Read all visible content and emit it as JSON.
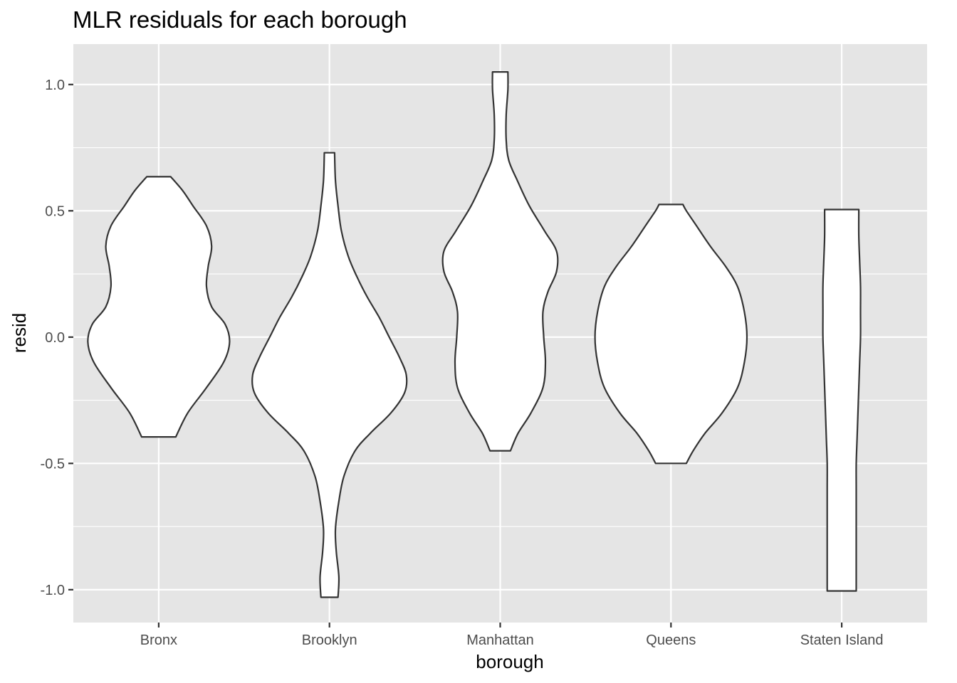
{
  "chart_data": {
    "type": "violin",
    "title": "MLR residuals for each borough",
    "xlabel": "borough",
    "ylabel": "resid",
    "ylim": [
      -1.13,
      1.16
    ],
    "yticks": [
      -1.0,
      -0.5,
      0.0,
      0.5,
      1.0
    ],
    "ytick_labels": [
      "-1.0",
      "-0.5",
      "0.0",
      "0.5",
      "1.0"
    ],
    "categories": [
      "Bronx",
      "Brooklyn",
      "Manhattan",
      "Queens",
      "Staten Island"
    ],
    "grid": true,
    "colors": {
      "panel": "#e5e5e5",
      "grid": "#ffffff",
      "outline": "#333333",
      "fill": "#ffffff"
    },
    "violins": [
      {
        "category": "Bronx",
        "min": -0.395,
        "max": 0.635,
        "profile": [
          [
            -0.395,
            0.2
          ],
          [
            -0.3,
            0.34
          ],
          [
            -0.2,
            0.56
          ],
          [
            -0.1,
            0.76
          ],
          [
            -0.02,
            0.83
          ],
          [
            0.05,
            0.78
          ],
          [
            0.12,
            0.62
          ],
          [
            0.2,
            0.56
          ],
          [
            0.28,
            0.58
          ],
          [
            0.36,
            0.62
          ],
          [
            0.44,
            0.56
          ],
          [
            0.52,
            0.4
          ],
          [
            0.58,
            0.28
          ],
          [
            0.635,
            0.14
          ]
        ]
      },
      {
        "category": "Brooklyn",
        "min": -1.03,
        "max": 0.73,
        "profile": [
          [
            -1.03,
            0.1
          ],
          [
            -0.95,
            0.11
          ],
          [
            -0.85,
            0.08
          ],
          [
            -0.76,
            0.07
          ],
          [
            -0.65,
            0.11
          ],
          [
            -0.55,
            0.17
          ],
          [
            -0.45,
            0.3
          ],
          [
            -0.38,
            0.48
          ],
          [
            -0.3,
            0.72
          ],
          [
            -0.22,
            0.88
          ],
          [
            -0.15,
            0.9
          ],
          [
            -0.08,
            0.82
          ],
          [
            0.0,
            0.7
          ],
          [
            0.08,
            0.58
          ],
          [
            0.16,
            0.44
          ],
          [
            0.24,
            0.32
          ],
          [
            0.32,
            0.22
          ],
          [
            0.42,
            0.14
          ],
          [
            0.52,
            0.1
          ],
          [
            0.62,
            0.07
          ],
          [
            0.73,
            0.06
          ]
        ]
      },
      {
        "category": "Manhattan",
        "min": -0.45,
        "max": 1.05,
        "profile": [
          [
            -0.45,
            0.12
          ],
          [
            -0.38,
            0.21
          ],
          [
            -0.3,
            0.36
          ],
          [
            -0.2,
            0.5
          ],
          [
            -0.1,
            0.53
          ],
          [
            0.0,
            0.51
          ],
          [
            0.1,
            0.5
          ],
          [
            0.18,
            0.56
          ],
          [
            0.26,
            0.66
          ],
          [
            0.34,
            0.66
          ],
          [
            0.42,
            0.52
          ],
          [
            0.52,
            0.34
          ],
          [
            0.62,
            0.2
          ],
          [
            0.7,
            0.1
          ],
          [
            0.78,
            0.07
          ],
          [
            0.88,
            0.07
          ],
          [
            0.98,
            0.09
          ],
          [
            1.05,
            0.09
          ]
        ]
      },
      {
        "category": "Queens",
        "min": -0.5,
        "max": 0.525,
        "profile": [
          [
            -0.5,
            0.18
          ],
          [
            -0.45,
            0.26
          ],
          [
            -0.38,
            0.4
          ],
          [
            -0.3,
            0.6
          ],
          [
            -0.2,
            0.78
          ],
          [
            -0.1,
            0.86
          ],
          [
            0.0,
            0.89
          ],
          [
            0.1,
            0.86
          ],
          [
            0.2,
            0.78
          ],
          [
            0.28,
            0.64
          ],
          [
            0.36,
            0.46
          ],
          [
            0.44,
            0.3
          ],
          [
            0.5,
            0.18
          ],
          [
            0.525,
            0.14
          ]
        ]
      },
      {
        "category": "Staten Island",
        "min": -1.005,
        "max": 0.505,
        "profile": [
          [
            -1.005,
            0.17
          ],
          [
            -0.9,
            0.17
          ],
          [
            -0.8,
            0.17
          ],
          [
            -0.7,
            0.17
          ],
          [
            -0.6,
            0.17
          ],
          [
            -0.5,
            0.17
          ],
          [
            -0.4,
            0.18
          ],
          [
            -0.3,
            0.19
          ],
          [
            -0.2,
            0.2
          ],
          [
            -0.1,
            0.21
          ],
          [
            0.0,
            0.22
          ],
          [
            0.1,
            0.22
          ],
          [
            0.2,
            0.22
          ],
          [
            0.3,
            0.21
          ],
          [
            0.4,
            0.2
          ],
          [
            0.505,
            0.2
          ]
        ]
      }
    ]
  }
}
